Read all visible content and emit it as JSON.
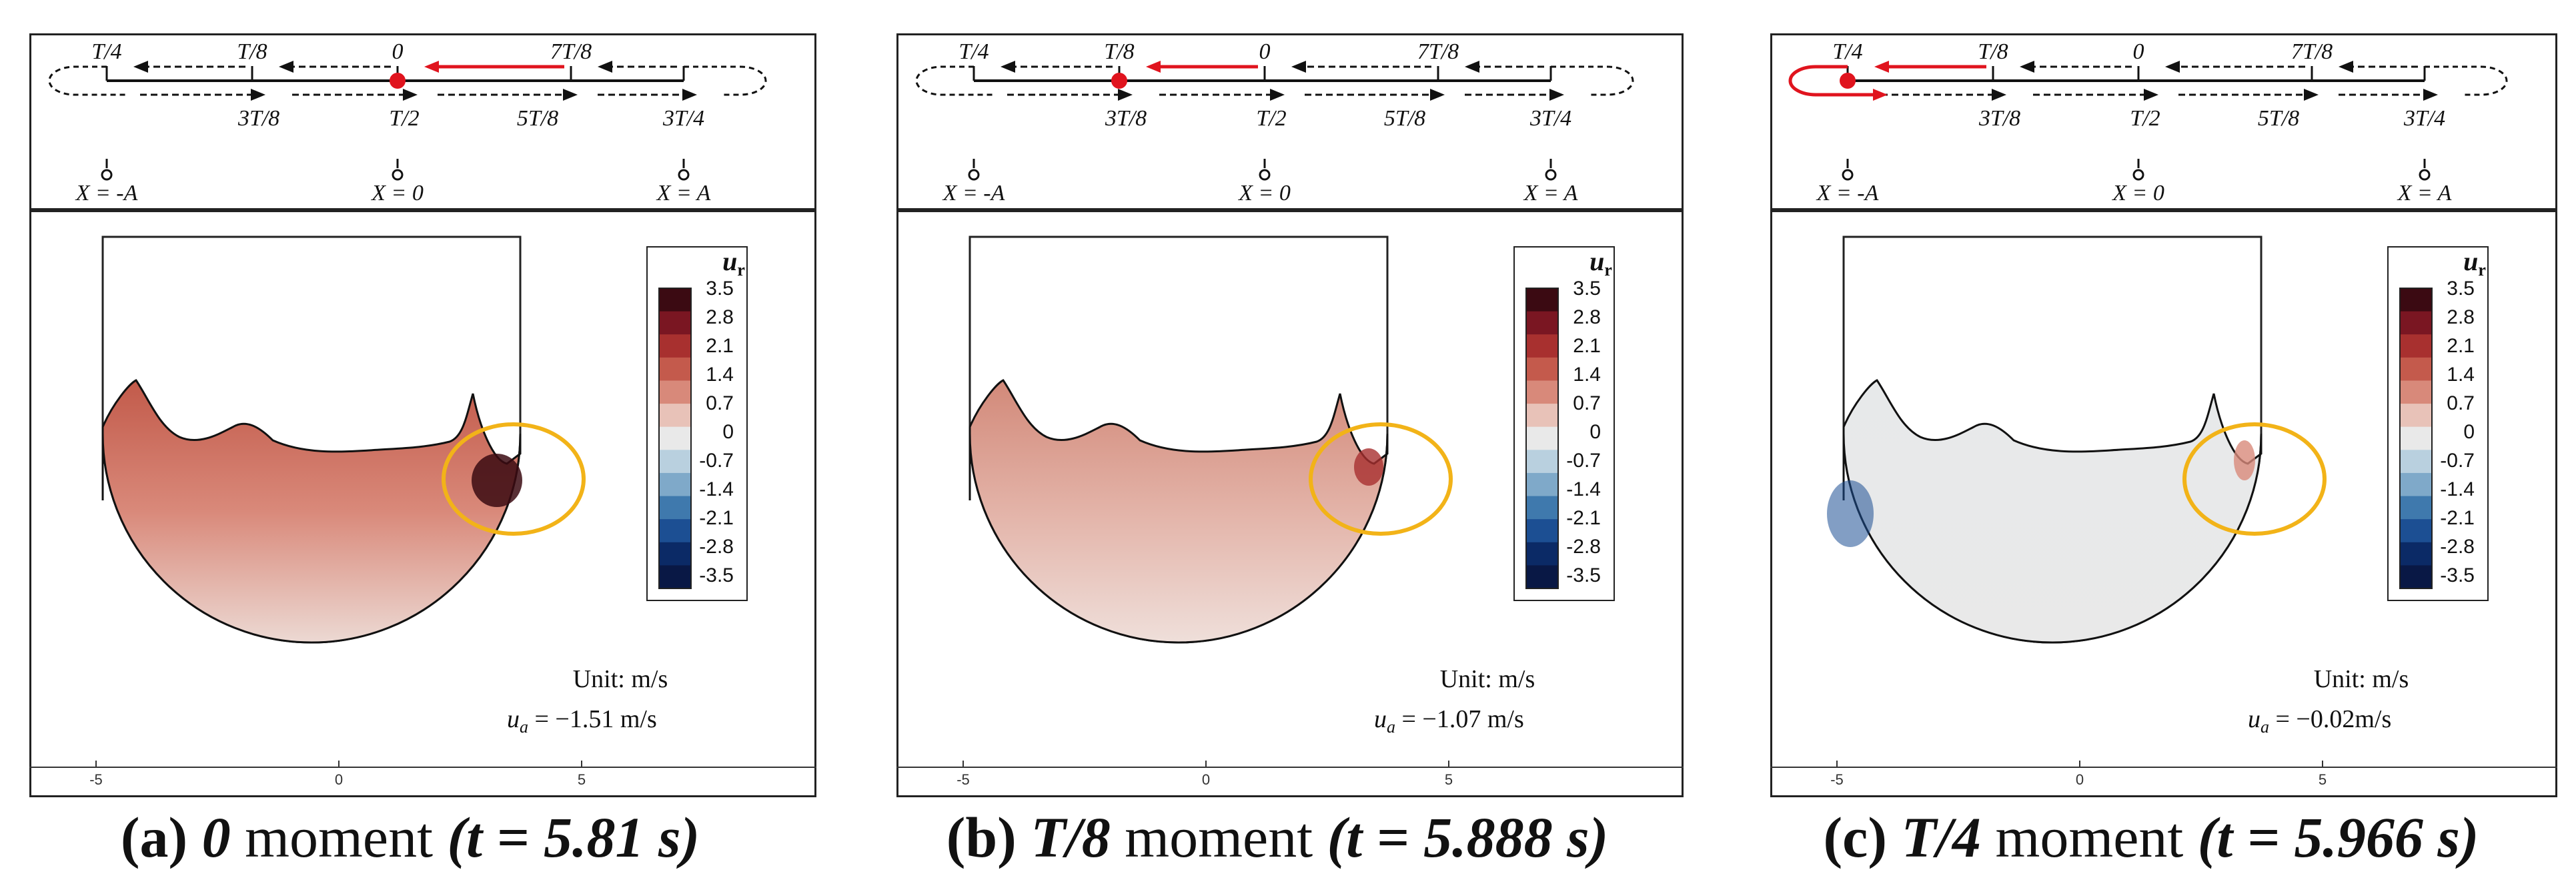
{
  "panels": [
    {
      "id": "a",
      "caption": {
        "letter": "(a)",
        "moment": "0",
        "word": "moment",
        "time": "(t = 5.81 s)"
      },
      "current_phase_index": 2,
      "current_row": "top",
      "unit_text": "Unit: m/s",
      "ua_label": "u",
      "ua_sub": "a",
      "ua_value": " = −1.51 m/s",
      "tint": "red-strong"
    },
    {
      "id": "b",
      "caption": {
        "letter": "(b)",
        "moment": "T/8",
        "word": "moment",
        "time": "(t = 5.888 s)"
      },
      "current_phase_index": 1,
      "current_row": "top",
      "unit_text": "Unit: m/s",
      "ua_label": "u",
      "ua_sub": "a",
      "ua_value": " = −1.07 m/s",
      "tint": "red-light"
    },
    {
      "id": "c",
      "caption": {
        "letter": "(c)",
        "moment": "T/4",
        "word": "moment",
        "time": "(t = 5.966 s)"
      },
      "current_phase_index": 0,
      "current_row": "top",
      "unit_text": "Unit: m/s",
      "ua_label": "u",
      "ua_sub": "a",
      "ua_value": " = −0.02m/s",
      "tint": "neutral"
    }
  ],
  "diagram": {
    "top_labels": [
      "T/4",
      "T/8",
      "0",
      "7T/8"
    ],
    "bottom_labels": [
      "3T/8",
      "T/2",
      "5T/8",
      "3T/4"
    ],
    "position_labels": [
      "X = -A",
      "X = 0",
      "X = A"
    ]
  },
  "colorbar": {
    "title": "u",
    "title_sub": "r",
    "ticks": [
      "3.5",
      "2.8",
      "2.1",
      "1.4",
      "0.7",
      "0",
      "-0.7",
      "-1.4",
      "-2.1",
      "-2.8",
      "-3.5"
    ],
    "colors": [
      "#3b0a12",
      "#7a1622",
      "#a8302f",
      "#c45a4c",
      "#d8897a",
      "#e8c2b8",
      "#e9e9e9",
      "#b9d0df",
      "#7fa9c9",
      "#3f79ad",
      "#1c4f93",
      "#0b2a66",
      "#091845"
    ]
  },
  "axis": {
    "ticks": [
      "-5",
      "0",
      "5"
    ]
  },
  "colors": {
    "highlight": "#f2b318",
    "marker": "#e0141e",
    "border": "#222222"
  }
}
